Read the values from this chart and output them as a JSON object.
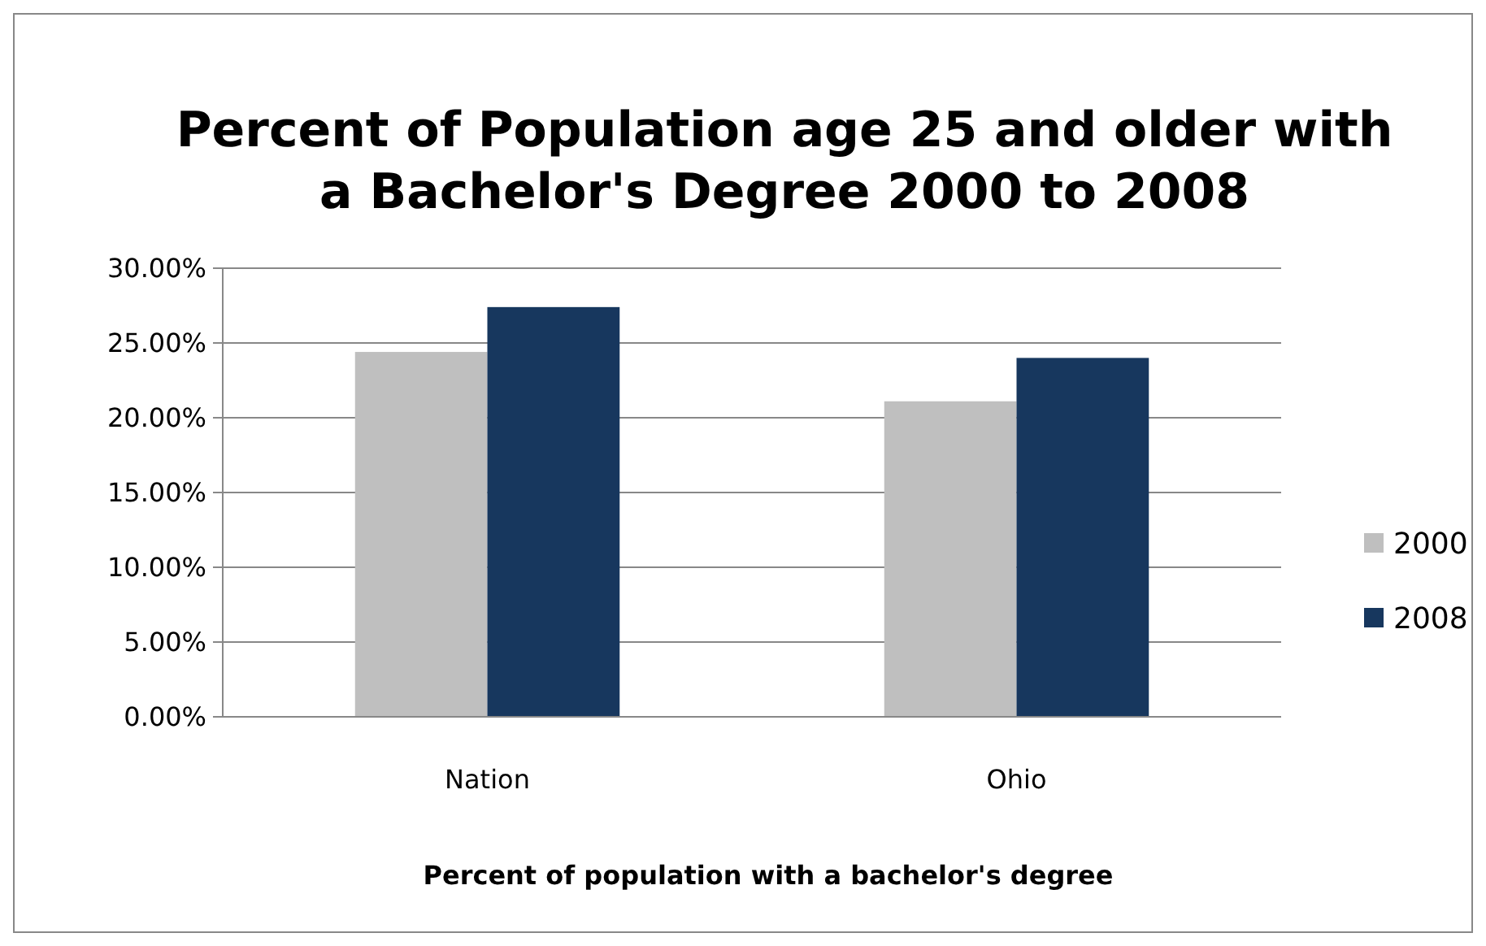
{
  "chart_data": {
    "type": "bar",
    "title": "Percent of Population age 25 and older with a Bachelor's Degree 2000 to 2008",
    "xlabel": "Percent of population with a bachelor's degree",
    "categories": [
      "Nation",
      "Ohio"
    ],
    "series": [
      {
        "name": "2000",
        "color": "#bfbfbf",
        "values": [
          24.4,
          21.1
        ]
      },
      {
        "name": "2008",
        "color": "#17375e",
        "values": [
          27.4,
          24.0
        ]
      }
    ],
    "ylim": [
      0,
      30
    ],
    "yticks": [
      {
        "value": 0,
        "label": "0.00%"
      },
      {
        "value": 5,
        "label": "5.00%"
      },
      {
        "value": 10,
        "label": "10.00%"
      },
      {
        "value": 15,
        "label": "15.00%"
      },
      {
        "value": 20,
        "label": "20.00%"
      },
      {
        "value": 25,
        "label": "25.00%"
      },
      {
        "value": 30,
        "label": "30.00%"
      }
    ],
    "grid": "y",
    "legend": "right"
  }
}
